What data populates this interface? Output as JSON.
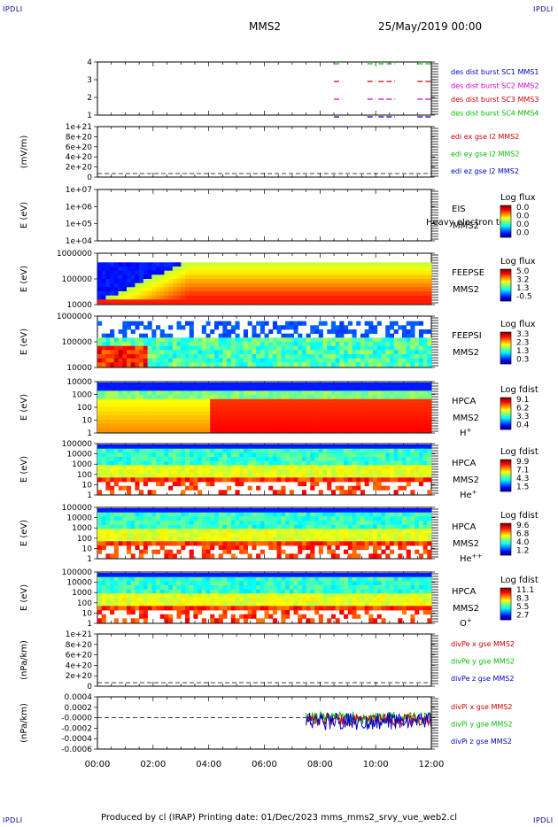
{
  "corner_label": "IPDLI",
  "header": {
    "mission": "MMS2",
    "date": "25/May/2019 00:00"
  },
  "footer": {
    "text": "Produced by cl (IRAP)   Printing date: 01/Dec/2023   mms_mms2_srvy_vue_web2.cl"
  },
  "time_axis": {
    "ticks": [
      "00:00",
      "02:00",
      "04:00",
      "06:00",
      "08:00",
      "10:00",
      "12:00"
    ]
  },
  "chart_data": [
    {
      "type": "line",
      "panel": "burst",
      "ylabel": "",
      "yticks": [
        "4",
        "3",
        "2",
        "1"
      ],
      "legend": [
        {
          "text": "des dist burst SC1 MMS1",
          "color": "#0000c8"
        },
        {
          "text": "des dist burst SC2 MMS2",
          "color": "#d000d0"
        },
        {
          "text": "des dist burst SC3 MMS3",
          "color": "#d00000"
        },
        {
          "text": "des dist burst SC4 MMS4",
          "color": "#00c000"
        }
      ],
      "segments": [
        {
          "level": 4,
          "color": "#00c000",
          "ranges": [
            [
              8.5,
              8.8
            ],
            [
              9.7,
              10.0
            ],
            [
              10.1,
              10.7
            ],
            [
              11.5,
              12.0
            ]
          ]
        },
        {
          "level": 3,
          "color": "#d00000",
          "ranges": [
            [
              8.5,
              8.8
            ],
            [
              9.7,
              10.0
            ],
            [
              10.1,
              10.7
            ],
            [
              11.5,
              12.0
            ]
          ]
        },
        {
          "level": 2,
          "color": "#d000d0",
          "ranges": [
            [
              8.5,
              8.8
            ],
            [
              9.7,
              10.0
            ],
            [
              10.1,
              10.7
            ],
            [
              11.5,
              12.0
            ]
          ]
        },
        {
          "level": 1,
          "color": "#0000c8",
          "ranges": [
            [
              8.5,
              8.8
            ],
            [
              9.7,
              10.0
            ],
            [
              10.1,
              10.7
            ],
            [
              11.5,
              12.0
            ]
          ]
        }
      ]
    },
    {
      "type": "line",
      "panel": "edi",
      "ylabel": "(mV/m)",
      "yticks": [
        "1e+21",
        "8e+20",
        "6e+20",
        "4e+20",
        "2e+20",
        "0"
      ],
      "legend": [
        {
          "text": "edi ex gse l2 MMS2",
          "color": "#d00000"
        },
        {
          "text": "edi ey gse l2 MMS2",
          "color": "#00c000"
        },
        {
          "text": "edi ez gse l2 MMS2",
          "color": "#0000c8"
        }
      ]
    },
    {
      "type": "heatmap",
      "panel": "eis",
      "ylabel": "E (eV)",
      "yticks": [
        "1e+07",
        "1e+06",
        "1e+05",
        "1e+04"
      ],
      "labels": [
        "EIS",
        "MMS2"
      ],
      "overlay": "Heavy electron to",
      "colorbar": {
        "title": "Log flux",
        "ticks": [
          "0.0",
          "0.0",
          "0.0",
          "0.0"
        ]
      }
    },
    {
      "type": "heatmap",
      "panel": "feepse",
      "ylabel": "E (eV)",
      "yticks": [
        "1000000",
        "100000",
        "10000"
      ],
      "labels": [
        "FEEPSE",
        "MMS2"
      ],
      "colorbar": {
        "title": "Log flux",
        "ticks": [
          "5.0",
          "3.2",
          "1.3",
          "-0.5"
        ]
      }
    },
    {
      "type": "heatmap",
      "panel": "feepsi",
      "ylabel": "E (eV)",
      "yticks": [
        "1000000",
        "100000",
        "10000"
      ],
      "labels": [
        "FEEPSI",
        "MMS2"
      ],
      "colorbar": {
        "title": "Log flux",
        "ticks": [
          "3.3",
          "2.3",
          "1.3",
          "0.3"
        ]
      }
    },
    {
      "type": "heatmap",
      "panel": "hpca_h",
      "ylabel": "E (eV)",
      "yticks": [
        "10000",
        "1000",
        "100",
        "10",
        "1"
      ],
      "labels": [
        "HPCA",
        "MMS2"
      ],
      "species": "H",
      "species_sup": "+",
      "colorbar": {
        "title": "Log fdist",
        "ticks": [
          "9.1",
          "6.2",
          "3.3",
          "0.4"
        ]
      }
    },
    {
      "type": "heatmap",
      "panel": "hpca_he1",
      "ylabel": "E (eV)",
      "yticks": [
        "100000",
        "10000",
        "1000",
        "100",
        "10",
        "1"
      ],
      "labels": [
        "HPCA",
        "MMS2"
      ],
      "species": "He",
      "species_sup": "+",
      "colorbar": {
        "title": "Log fdist",
        "ticks": [
          "9.9",
          "7.1",
          "4.3",
          "1.5"
        ]
      }
    },
    {
      "type": "heatmap",
      "panel": "hpca_he2",
      "ylabel": "E (eV)",
      "yticks": [
        "100000",
        "10000",
        "1000",
        "100",
        "10",
        "1"
      ],
      "labels": [
        "HPCA",
        "MMS2"
      ],
      "species": "He",
      "species_sup": "++",
      "colorbar": {
        "title": "Log fdist",
        "ticks": [
          "9.6",
          "6.8",
          "4.0",
          "1.2"
        ]
      }
    },
    {
      "type": "heatmap",
      "panel": "hpca_o",
      "ylabel": "E (eV)",
      "yticks": [
        "100000",
        "10000",
        "1000",
        "100",
        "10",
        "1"
      ],
      "labels": [
        "HPCA",
        "MMS2"
      ],
      "species": "O",
      "species_sup": "+",
      "colorbar": {
        "title": "Log fdist",
        "ticks": [
          "11.1",
          "8.3",
          "5.5",
          "2.7"
        ]
      }
    },
    {
      "type": "line",
      "panel": "divpe",
      "ylabel": "(nPa/km)",
      "yticks": [
        "1e+21",
        "8e+20",
        "6e+20",
        "4e+20",
        "2e+20",
        "0"
      ],
      "legend": [
        {
          "text": "divPe x gse MMS2",
          "color": "#d00000"
        },
        {
          "text": "divPe y gse MMS2",
          "color": "#00c000"
        },
        {
          "text": "divPe z gse MMS2",
          "color": "#0000c8"
        }
      ]
    },
    {
      "type": "line",
      "panel": "divpi",
      "ylabel": "(nPa/km)",
      "yticks": [
        "0.0004",
        "0.0002",
        "-0.0000",
        "-0.0002",
        "-0.0004",
        "-0.0006"
      ],
      "legend": [
        {
          "text": "divPi x gse MMS2",
          "color": "#d00000"
        },
        {
          "text": "divPi y gse MMS2",
          "color": "#00c000"
        },
        {
          "text": "divPi z gse MMS2",
          "color": "#0000c8"
        }
      ],
      "data_start_hour": 7.5,
      "data_end_hour": 12.0
    }
  ]
}
